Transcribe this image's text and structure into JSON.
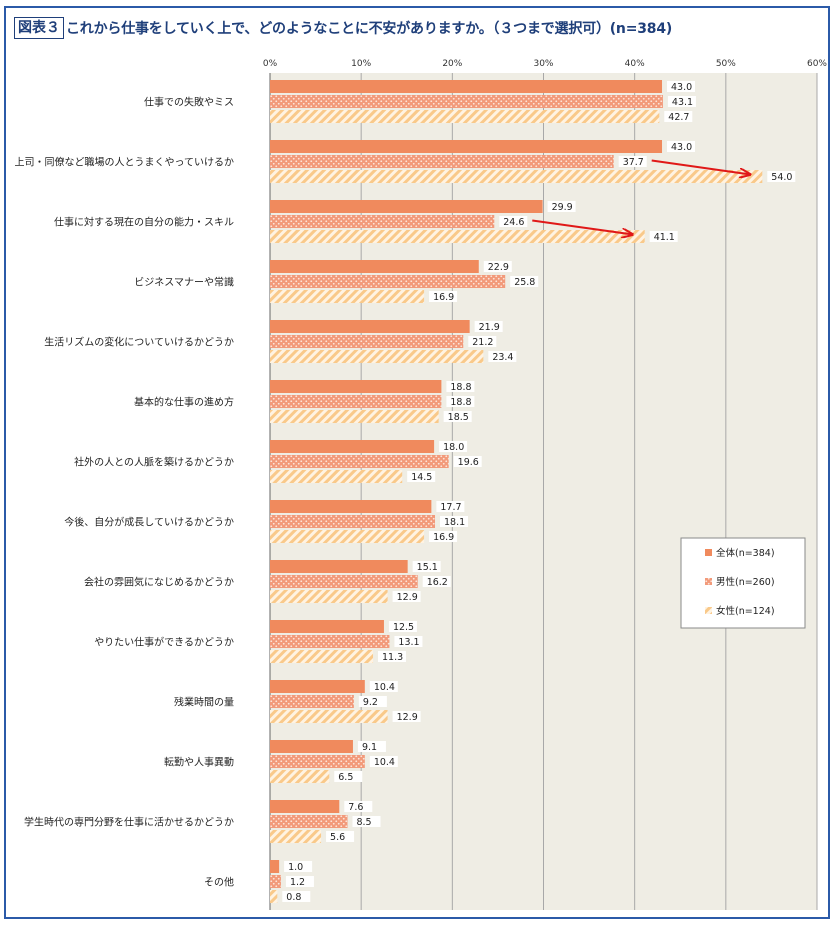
{
  "figure": {
    "label": "図表３",
    "title": "これから仕事をしていく上で、どのようなことに不安がありますか。（３つまで選択可）(n=384)"
  },
  "colors": {
    "all": "#f08a5d",
    "male": "#f29a7a",
    "female": "#f9c98a",
    "plot_bg": "#efede4",
    "grid": "#a8a8a8",
    "arrow": "#e01818"
  },
  "chart_data": {
    "type": "bar",
    "orientation": "horizontal",
    "xlim": [
      0,
      60
    ],
    "x_ticks": [
      "0%",
      "10%",
      "20%",
      "30%",
      "40%",
      "50%",
      "60%"
    ],
    "categories": [
      "仕事での失敗やミス",
      "上司・同僚など職場の人とうまくやっていけるか",
      "仕事に対する現在の自分の能力・スキル",
      "ビジネスマナーや常識",
      "生活リズムの変化についていけるかどうか",
      "基本的な仕事の進め方",
      "社外の人との人脈を築けるかどうか",
      "今後、自分が成長していけるかどうか",
      "会社の雰囲気になじめるかどうか",
      "やりたい仕事ができるかどうか",
      "残業時間の量",
      "転勤や人事異動",
      "学生時代の専門分野を仕事に活かせるかどうか",
      "その他"
    ],
    "series": [
      {
        "name": "全体(n=384)",
        "pattern": "solid",
        "values": [
          43.0,
          43.0,
          29.9,
          22.9,
          21.9,
          18.8,
          18.0,
          17.7,
          15.1,
          12.5,
          10.4,
          9.1,
          7.6,
          1.0
        ],
        "labels": [
          "43.0",
          "43.0",
          "29.9",
          "22.9",
          "21.9",
          "18.8",
          "18.0",
          "17.7",
          "15.1",
          "12.5",
          "10.4",
          "9.1",
          "7.6",
          "1.0"
        ]
      },
      {
        "name": "男性(n=260)",
        "pattern": "dots",
        "values": [
          43.1,
          37.7,
          24.6,
          25.8,
          21.2,
          18.8,
          19.6,
          18.1,
          16.2,
          13.1,
          9.2,
          10.4,
          8.5,
          1.2
        ],
        "labels": [
          "43.1",
          "37.7",
          "24.6",
          "25.8",
          "21.2",
          "18.8",
          "19.6",
          "18.1",
          "16.2",
          "13.1",
          "9.2",
          "10.4",
          "8.5",
          "1.2"
        ]
      },
      {
        "name": "女性(n=124)",
        "pattern": "stripes",
        "values": [
          42.7,
          54.0,
          41.1,
          16.9,
          23.4,
          18.5,
          14.5,
          16.9,
          12.9,
          11.3,
          12.9,
          6.5,
          5.6,
          0.8
        ],
        "labels": [
          "42.7",
          "54.0",
          "41.1",
          "16.9",
          "23.4",
          "18.5",
          "14.5",
          "16.9",
          "12.9",
          "11.3",
          "12.9",
          "6.5",
          "5.6",
          "0.8"
        ]
      }
    ],
    "legend_position": "right",
    "annotations": [
      {
        "type": "arrow",
        "category_index": 1,
        "from_series": 1,
        "to_series": 2
      },
      {
        "type": "arrow",
        "category_index": 2,
        "from_series": 1,
        "to_series": 2
      }
    ]
  }
}
